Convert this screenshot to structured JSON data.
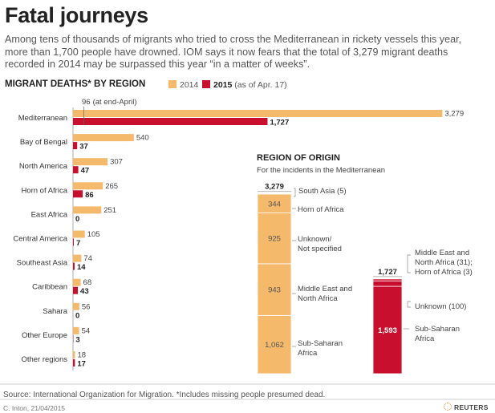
{
  "title": "Fatal journeys",
  "subtitle": "Among tens of thousands of migrants who tried to cross the Mediterranean in rickety vessels this year, more than 1,700 people have drowned. IOM says it now fears that the total of 3,279 migrant deaths recorded in 2014 may be surpassed this year “in a matter of weeks”.",
  "chart_heading": "MIGRANT DEATHS* BY REGION",
  "legend": {
    "label_2014": "2014",
    "label_2015_bold": "2015",
    "label_2015_note": "(as of Apr. 17)"
  },
  "marker_label": "96",
  "marker_note": "(at end-April)",
  "origin_title": "REGION OF ORIGIN",
  "origin_subtitle": "For the incidents in the Mediterranean",
  "source": "Source: International Organization for Migration. *Includes missing people presumed dead.",
  "credit": "C. Inton, 21/04/2015",
  "brand": "REUTERS",
  "colors": {
    "c2014": "#f5b96c",
    "c2015": "#c8102e"
  },
  "chart_data": [
    {
      "type": "bar",
      "orientation": "horizontal",
      "title": "MIGRANT DEATHS* BY REGION",
      "categories": [
        "Mediterranean",
        "Bay of Bengal",
        "North America",
        "Horn of Africa",
        "East Africa",
        "Central America",
        "Southeast Asia",
        "Caribbean",
        "Sahara",
        "Other Europe",
        "Other regions"
      ],
      "series": [
        {
          "name": "2014",
          "color": "#f5b96c",
          "values": [
            3279,
            540,
            307,
            265,
            251,
            105,
            74,
            68,
            56,
            54,
            18
          ]
        },
        {
          "name": "2015 (as of Apr. 17)",
          "color": "#c8102e",
          "values": [
            1727,
            37,
            47,
            86,
            0,
            7,
            14,
            43,
            0,
            3,
            17
          ]
        }
      ],
      "annotation": {
        "value": 96,
        "text": "96 (at end-April)"
      }
    },
    {
      "type": "bar",
      "stacked": true,
      "title": "REGION OF ORIGIN",
      "subtitle": "For the incidents in the Mediterranean",
      "stacks": [
        {
          "name": "2014",
          "total": 3279,
          "total_label": "3,279",
          "color": "#f5b96c",
          "segments": [
            {
              "label": "South Asia (5)",
              "value": 5,
              "value_label": ""
            },
            {
              "label": "Horn of Africa",
              "value": 344,
              "value_label": "344"
            },
            {
              "label": "Unknown/\nNot specified",
              "value": 925,
              "value_label": "925"
            },
            {
              "label": "Middle East and\nNorth Africa",
              "value": 943,
              "value_label": "943"
            },
            {
              "label": "Sub-Saharan\nAfrica",
              "value": 1062,
              "value_label": "1,062"
            }
          ]
        },
        {
          "name": "2015",
          "total": 1727,
          "total_label": "1,727",
          "color": "#c8102e",
          "segments": [
            {
              "label": "Middle East and\nNorth Africa (31);\nHorn of Africa (3)",
              "value": 34,
              "value_label": ""
            },
            {
              "label": "Unknown (100)",
              "value": 100,
              "value_label": ""
            },
            {
              "label": "Sub-Saharan\nAfrica",
              "value": 1593,
              "value_label": "1,593"
            }
          ]
        }
      ]
    }
  ]
}
